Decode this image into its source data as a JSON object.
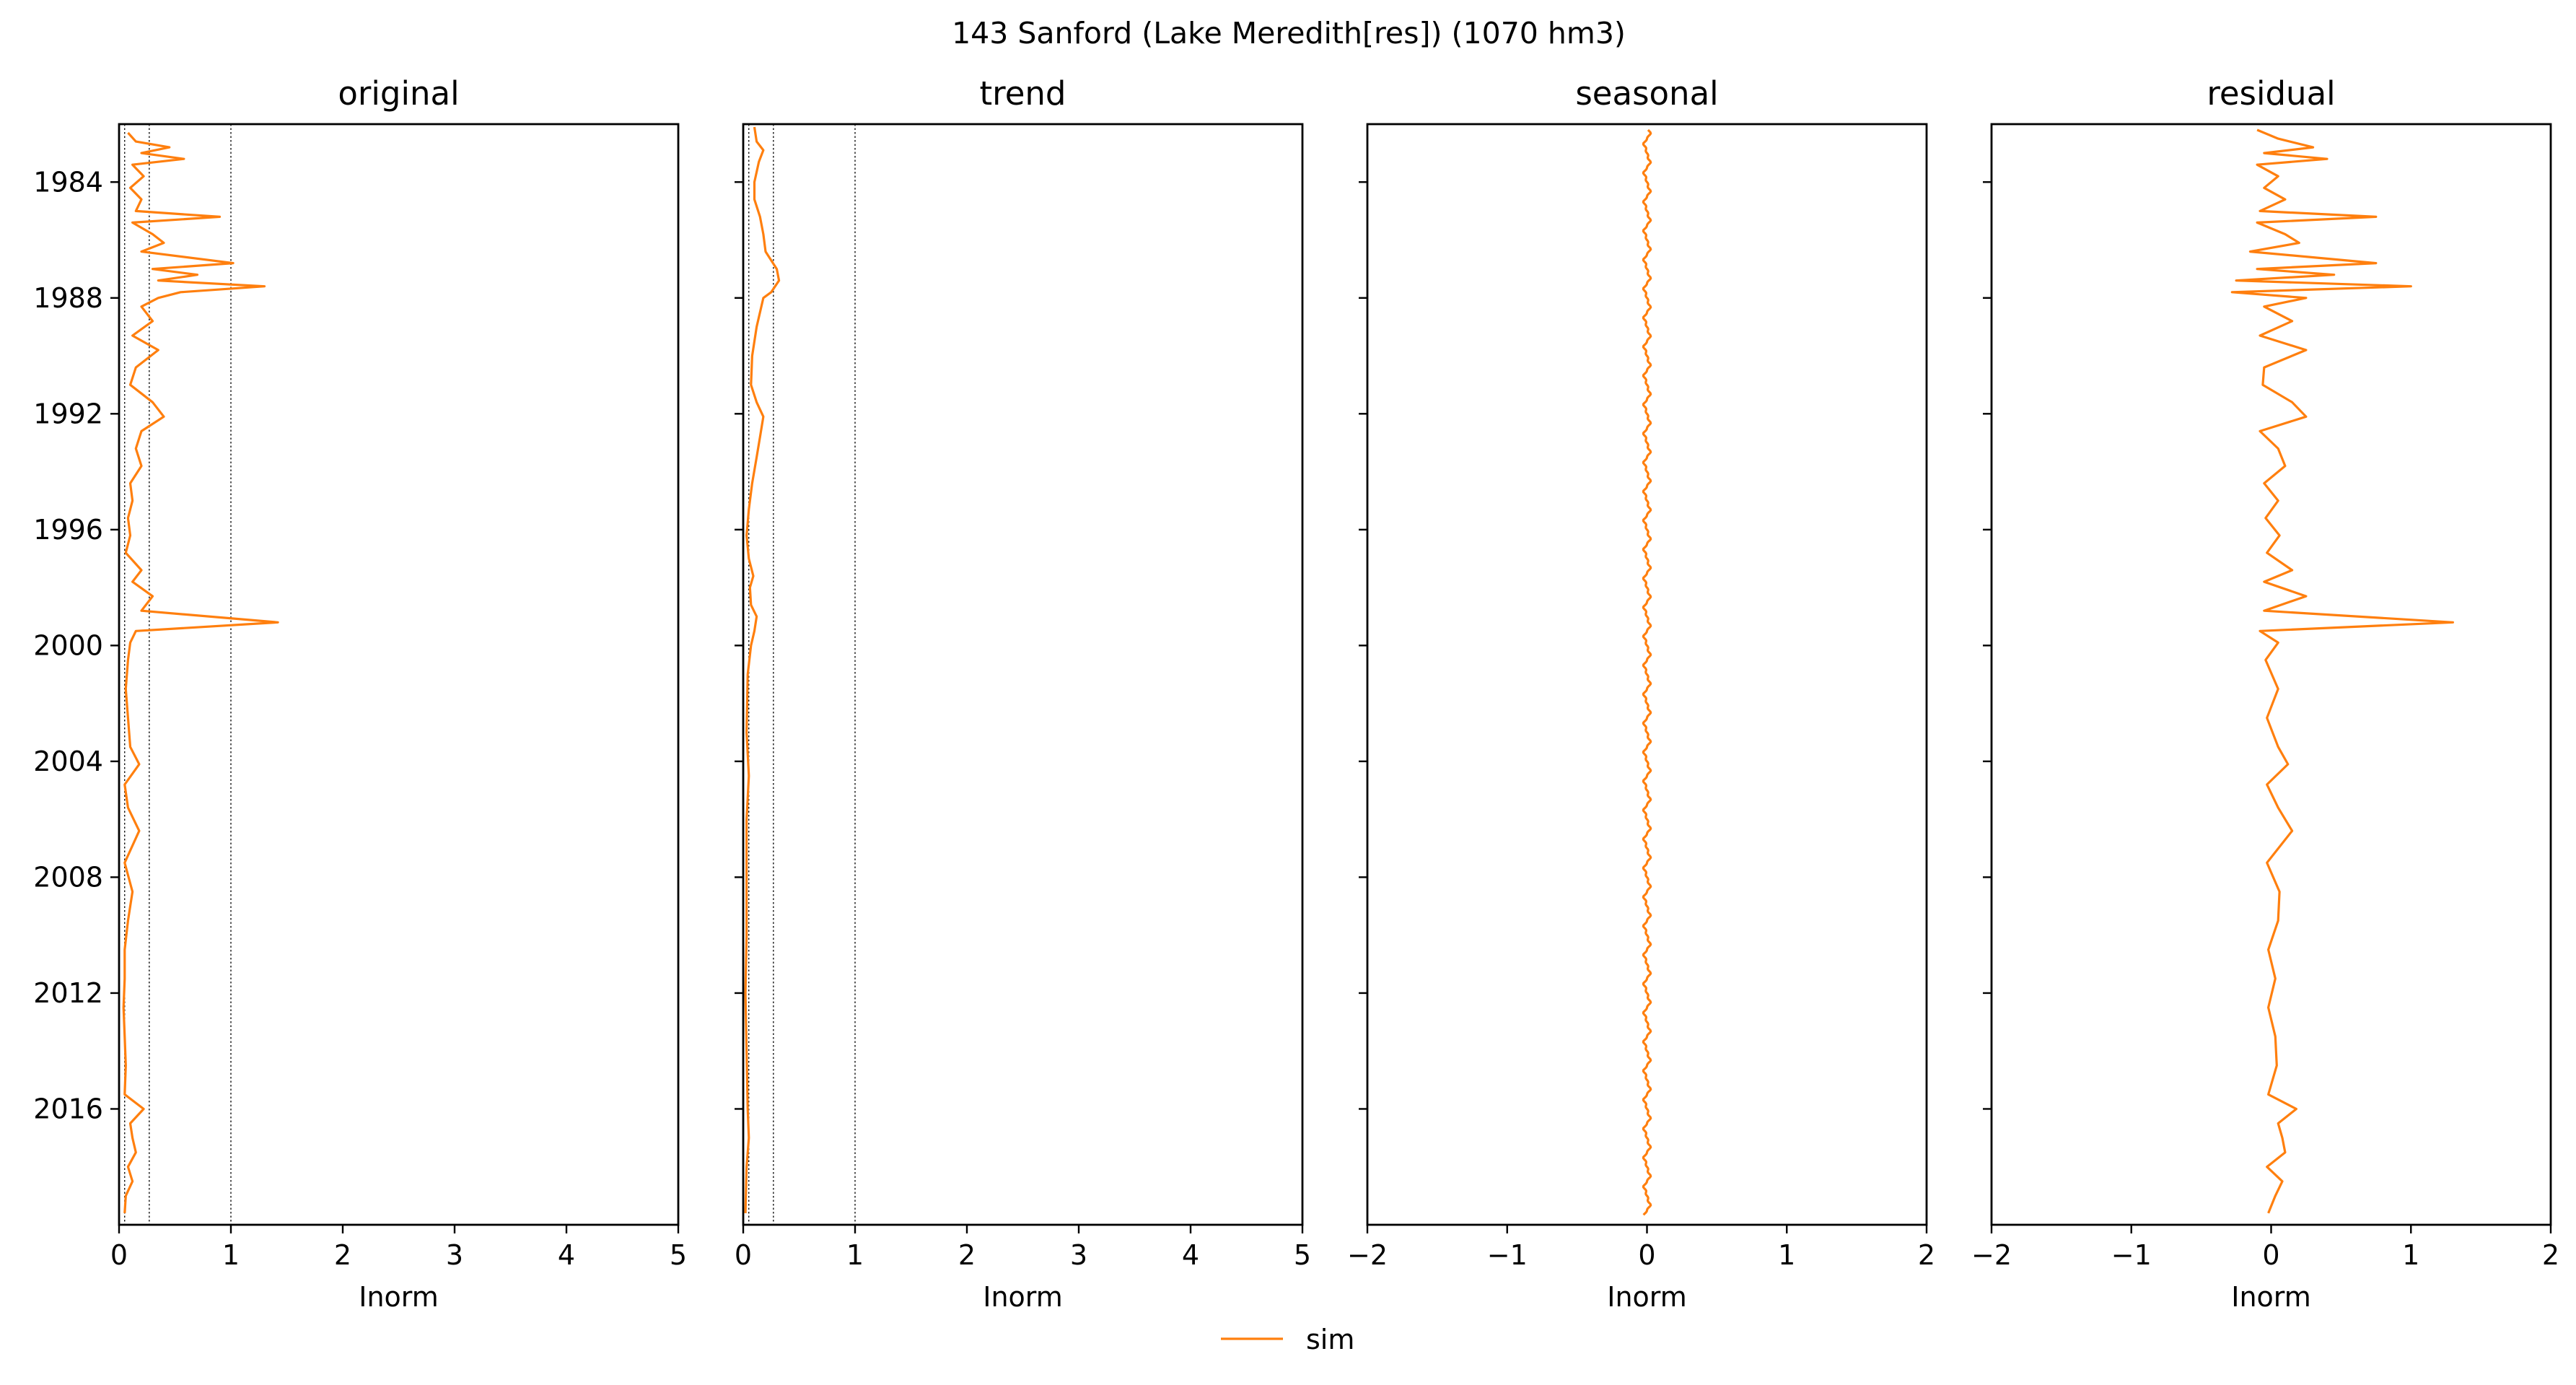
{
  "figure": {
    "suptitle": "143  Sanford (Lake Meredith[res]) (1070 hm3)",
    "legend": {
      "label": "sim",
      "color": "#ff7f0e",
      "placement": "bottom-center"
    }
  },
  "chart_data": [
    {
      "type": "line",
      "title": "original",
      "xlabel": "Inorm",
      "ylabel": "",
      "orientation": "vertical-time",
      "xlim": [
        0,
        5
      ],
      "xticks": [
        "0",
        "1",
        "2",
        "3",
        "4",
        "5"
      ],
      "ylim": [
        "1982-01-01",
        "2019-12-31"
      ],
      "yticks": [
        "1984",
        "1988",
        "1992",
        "1996",
        "2000",
        "2004",
        "2008",
        "2012",
        "2016"
      ],
      "reference_lines_x": [
        0.05,
        0.27,
        1.0
      ],
      "series": [
        {
          "name": "sim",
          "color": "#ff7f0e",
          "points": [
            [
              "1982.3",
              0.08
            ],
            [
              "1982.6",
              0.15
            ],
            [
              "1982.8",
              0.45
            ],
            [
              "1983.0",
              0.2
            ],
            [
              "1983.2",
              0.58
            ],
            [
              "1983.4",
              0.12
            ],
            [
              "1983.8",
              0.22
            ],
            [
              "1984.2",
              0.1
            ],
            [
              "1984.6",
              0.2
            ],
            [
              "1985.0",
              0.15
            ],
            [
              "1985.2",
              0.9
            ],
            [
              "1985.4",
              0.12
            ],
            [
              "1985.8",
              0.3
            ],
            [
              "1986.1",
              0.4
            ],
            [
              "1986.4",
              0.2
            ],
            [
              "1986.8",
              1.02
            ],
            [
              "1987.0",
              0.3
            ],
            [
              "1987.2",
              0.7
            ],
            [
              "1987.4",
              0.35
            ],
            [
              "1987.6",
              1.3
            ],
            [
              "1987.8",
              0.55
            ],
            [
              "1988.0",
              0.35
            ],
            [
              "1988.3",
              0.2
            ],
            [
              "1988.8",
              0.3
            ],
            [
              "1989.3",
              0.12
            ],
            [
              "1989.8",
              0.35
            ],
            [
              "1990.4",
              0.15
            ],
            [
              "1991.0",
              0.1
            ],
            [
              "1991.6",
              0.3
            ],
            [
              "1992.1",
              0.4
            ],
            [
              "1992.6",
              0.2
            ],
            [
              "1993.2",
              0.15
            ],
            [
              "1993.8",
              0.2
            ],
            [
              "1994.4",
              0.1
            ],
            [
              "1995.0",
              0.12
            ],
            [
              "1995.6",
              0.08
            ],
            [
              "1996.2",
              0.1
            ],
            [
              "1996.8",
              0.06
            ],
            [
              "1997.4",
              0.2
            ],
            [
              "1997.8",
              0.12
            ],
            [
              "1998.3",
              0.3
            ],
            [
              "1998.8",
              0.2
            ],
            [
              "1999.2",
              1.42
            ],
            [
              "1999.5",
              0.15
            ],
            [
              "1999.9",
              0.1
            ],
            [
              "2000.5",
              0.08
            ],
            [
              "2001.5",
              0.06
            ],
            [
              "2002.5",
              0.08
            ],
            [
              "2003.5",
              0.1
            ],
            [
              "2004.1",
              0.18
            ],
            [
              "2004.8",
              0.05
            ],
            [
              "2005.6",
              0.08
            ],
            [
              "2006.4",
              0.18
            ],
            [
              "2007.5",
              0.05
            ],
            [
              "2008.5",
              0.12
            ],
            [
              "2009.5",
              0.08
            ],
            [
              "2010.5",
              0.05
            ],
            [
              "2011.5",
              0.05
            ],
            [
              "2012.5",
              0.04
            ],
            [
              "2013.5",
              0.05
            ],
            [
              "2014.5",
              0.06
            ],
            [
              "2015.5",
              0.05
            ],
            [
              "2016.0",
              0.22
            ],
            [
              "2016.5",
              0.1
            ],
            [
              "2017.0",
              0.12
            ],
            [
              "2017.5",
              0.15
            ],
            [
              "2018.0",
              0.08
            ],
            [
              "2018.5",
              0.12
            ],
            [
              "2019.0",
              0.06
            ],
            [
              "2019.6",
              0.05
            ]
          ]
        }
      ]
    },
    {
      "type": "line",
      "title": "trend",
      "xlabel": "Inorm",
      "ylabel": "",
      "orientation": "vertical-time",
      "xlim": [
        0,
        5
      ],
      "xticks": [
        "0",
        "1",
        "2",
        "3",
        "4",
        "5"
      ],
      "ylim": [
        "1982-01-01",
        "2019-12-31"
      ],
      "yticks": [
        "1984",
        "1988",
        "1992",
        "1996",
        "2000",
        "2004",
        "2008",
        "2012",
        "2016"
      ],
      "reference_lines_x": [
        0.05,
        0.27,
        1.0
      ],
      "series": [
        {
          "name": "sim",
          "color": "#ff7f0e",
          "points": [
            [
              "1982.1",
              0.1
            ],
            [
              "1982.6",
              0.12
            ],
            [
              "1982.9",
              0.18
            ],
            [
              "1983.3",
              0.14
            ],
            [
              "1984.0",
              0.1
            ],
            [
              "1984.6",
              0.1
            ],
            [
              "1985.2",
              0.15
            ],
            [
              "1985.8",
              0.18
            ],
            [
              "1986.4",
              0.2
            ],
            [
              "1987.0",
              0.3
            ],
            [
              "1987.4",
              0.32
            ],
            [
              "1987.8",
              0.25
            ],
            [
              "1988.0",
              0.18
            ],
            [
              "1989.0",
              0.12
            ],
            [
              "1990.0",
              0.08
            ],
            [
              "1991.0",
              0.07
            ],
            [
              "1991.6",
              0.12
            ],
            [
              "1992.1",
              0.18
            ],
            [
              "1992.8",
              0.15
            ],
            [
              "1993.5",
              0.12
            ],
            [
              "1994.4",
              0.08
            ],
            [
              "1995.3",
              0.05
            ],
            [
              "1996.2",
              0.03
            ],
            [
              "1997.0",
              0.05
            ],
            [
              "1997.6",
              0.09
            ],
            [
              "1998.0",
              0.06
            ],
            [
              "1998.6",
              0.07
            ],
            [
              "1999.0",
              0.12
            ],
            [
              "1999.5",
              0.1
            ],
            [
              "2000.0",
              0.07
            ],
            [
              "2001.0",
              0.04
            ],
            [
              "2003.0",
              0.03
            ],
            [
              "2004.5",
              0.05
            ],
            [
              "2006.0",
              0.03
            ],
            [
              "2008.0",
              0.03
            ],
            [
              "2010.0",
              0.03
            ],
            [
              "2012.0",
              0.02
            ],
            [
              "2014.0",
              0.03
            ],
            [
              "2016.0",
              0.04
            ],
            [
              "2017.0",
              0.05
            ],
            [
              "2018.0",
              0.03
            ],
            [
              "2019.6",
              0.02
            ]
          ]
        }
      ]
    },
    {
      "type": "line",
      "title": "seasonal",
      "xlabel": "Inorm",
      "ylabel": "",
      "orientation": "vertical-time",
      "xlim": [
        -2,
        2
      ],
      "xticks": [
        "−2",
        "−1",
        "0",
        "1",
        "2"
      ],
      "ylim": [
        "1982-01-01",
        "2019-12-31"
      ],
      "yticks": [
        "1984",
        "1988",
        "1992",
        "1996",
        "2000",
        "2004",
        "2008",
        "2012",
        "2016"
      ],
      "series": [
        {
          "name": "sim",
          "color": "#ff7f0e",
          "seasonal_amplitude": 0.03,
          "period_years": 1
        }
      ]
    },
    {
      "type": "line",
      "title": "residual",
      "xlabel": "Inorm",
      "ylabel": "",
      "orientation": "vertical-time",
      "xlim": [
        -2,
        2
      ],
      "xticks": [
        "−2",
        "−1",
        "0",
        "1",
        "2"
      ],
      "ylim": [
        "1982-01-01",
        "2019-12-31"
      ],
      "yticks": [
        "1984",
        "1988",
        "1992",
        "1996",
        "2000",
        "2004",
        "2008",
        "2012",
        "2016"
      ],
      "series": [
        {
          "name": "sim",
          "color": "#ff7f0e",
          "points": [
            [
              "1982.2",
              -0.1
            ],
            [
              "1982.5",
              0.05
            ],
            [
              "1982.8",
              0.3
            ],
            [
              "1983.0",
              -0.05
            ],
            [
              "1983.2",
              0.4
            ],
            [
              "1983.4",
              -0.1
            ],
            [
              "1983.8",
              0.05
            ],
            [
              "1984.2",
              -0.05
            ],
            [
              "1984.6",
              0.1
            ],
            [
              "1985.0",
              -0.08
            ],
            [
              "1985.2",
              0.75
            ],
            [
              "1985.4",
              -0.1
            ],
            [
              "1985.8",
              0.1
            ],
            [
              "1986.1",
              0.2
            ],
            [
              "1986.4",
              -0.15
            ],
            [
              "1986.8",
              0.75
            ],
            [
              "1987.0",
              -0.1
            ],
            [
              "1987.2",
              0.45
            ],
            [
              "1987.4",
              -0.25
            ],
            [
              "1987.6",
              1.0
            ],
            [
              "1987.8",
              -0.28
            ],
            [
              "1988.0",
              0.25
            ],
            [
              "1988.3",
              -0.05
            ],
            [
              "1988.8",
              0.15
            ],
            [
              "1989.3",
              -0.08
            ],
            [
              "1989.8",
              0.25
            ],
            [
              "1990.4",
              -0.05
            ],
            [
              "1991.0",
              -0.06
            ],
            [
              "1991.6",
              0.15
            ],
            [
              "1992.1",
              0.25
            ],
            [
              "1992.6",
              -0.08
            ],
            [
              "1993.2",
              0.05
            ],
            [
              "1993.8",
              0.1
            ],
            [
              "1994.4",
              -0.05
            ],
            [
              "1995.0",
              0.05
            ],
            [
              "1995.6",
              -0.04
            ],
            [
              "1996.2",
              0.06
            ],
            [
              "1996.8",
              -0.03
            ],
            [
              "1997.4",
              0.15
            ],
            [
              "1997.8",
              -0.05
            ],
            [
              "1998.3",
              0.25
            ],
            [
              "1998.8",
              -0.05
            ],
            [
              "1999.2",
              1.3
            ],
            [
              "1999.5",
              -0.08
            ],
            [
              "1999.9",
              0.05
            ],
            [
              "2000.5",
              -0.04
            ],
            [
              "2001.5",
              0.05
            ],
            [
              "2002.5",
              -0.03
            ],
            [
              "2003.5",
              0.05
            ],
            [
              "2004.1",
              0.12
            ],
            [
              "2004.8",
              -0.03
            ],
            [
              "2005.6",
              0.05
            ],
            [
              "2006.4",
              0.15
            ],
            [
              "2007.5",
              -0.03
            ],
            [
              "2008.5",
              0.06
            ],
            [
              "2009.5",
              0.05
            ],
            [
              "2010.5",
              -0.02
            ],
            [
              "2011.5",
              0.03
            ],
            [
              "2012.5",
              -0.02
            ],
            [
              "2013.5",
              0.03
            ],
            [
              "2014.5",
              0.04
            ],
            [
              "2015.5",
              -0.02
            ],
            [
              "2016.0",
              0.18
            ],
            [
              "2016.5",
              0.05
            ],
            [
              "2017.0",
              0.08
            ],
            [
              "2017.5",
              0.1
            ],
            [
              "2018.0",
              -0.03
            ],
            [
              "2018.5",
              0.08
            ],
            [
              "2019.0",
              0.03
            ],
            [
              "2019.6",
              -0.02
            ]
          ]
        }
      ]
    }
  ]
}
